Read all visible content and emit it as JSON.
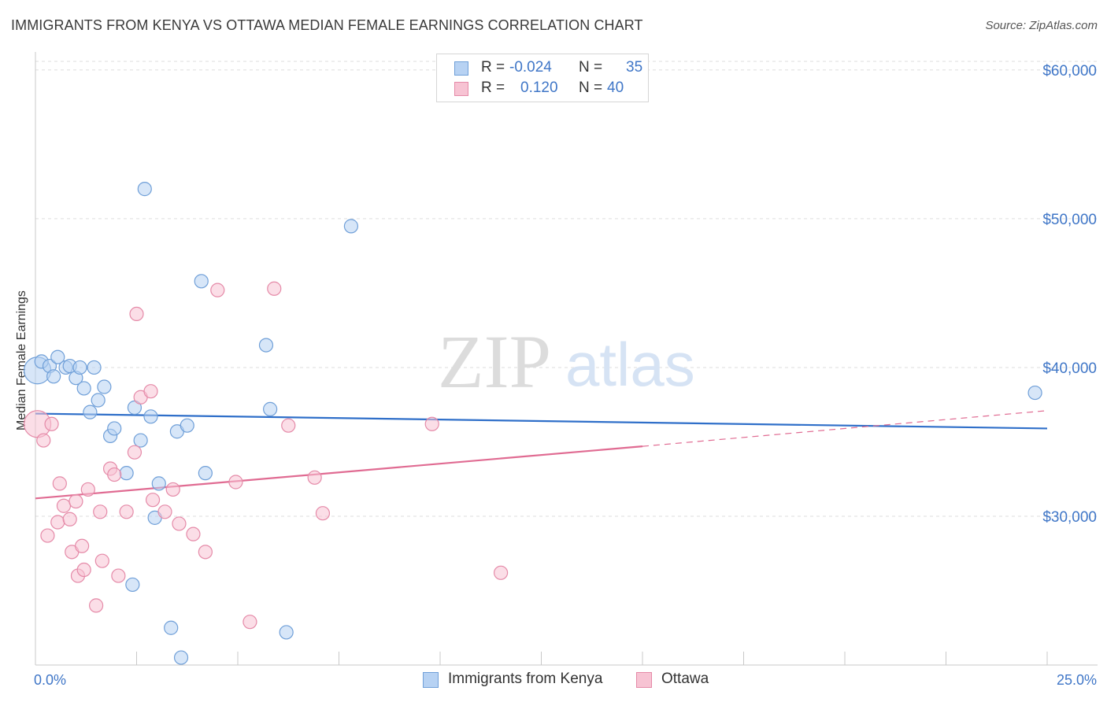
{
  "header": {
    "title": "IMMIGRANTS FROM KENYA VS OTTAWA MEDIAN FEMALE EARNINGS CORRELATION CHART",
    "source": "Source: ZipAtlas.com"
  },
  "watermark": {
    "zip": "ZIP",
    "atlas": "atlas"
  },
  "legend": {
    "rows": [
      {
        "r_label": "R =",
        "r_value": "-0.024",
        "n_label": "N =",
        "n_value": "35"
      },
      {
        "r_label": "R =",
        "r_value": "0.120",
        "n_label": "N =",
        "n_value": "40"
      }
    ]
  },
  "colors": {
    "blue_fill": "#b7d2f3",
    "blue_stroke": "#6f9fd8",
    "blue_line": "#2f6fc9",
    "pink_fill": "#f7c3d3",
    "pink_stroke": "#e58aa8",
    "pink_line": "#e06b92",
    "grid": "#dddddd",
    "axis_text": "#3f76c7"
  },
  "chart_data": {
    "type": "scatter",
    "title": "IMMIGRANTS FROM KENYA VS OTTAWA MEDIAN FEMALE EARNINGS CORRELATION CHART",
    "xlabel": "",
    "ylabel": "Median Female Earnings",
    "xlim": [
      0,
      25
    ],
    "ylim": [
      20000,
      61000
    ],
    "x_tick_labels": [
      "0.0%",
      "25.0%"
    ],
    "y_ticks": [
      30000,
      40000,
      50000,
      60000
    ],
    "y_tick_labels": [
      "$30,000",
      "$40,000",
      "$50,000",
      "$60,000"
    ],
    "grid": true,
    "series": [
      {
        "name": "Immigrants from Kenya",
        "color": "blue",
        "trend": {
          "x": [
            0,
            25
          ],
          "y": [
            36900,
            35900
          ]
        },
        "points": [
          {
            "x": 0.05,
            "y": 39800,
            "big": true
          },
          {
            "x": 0.15,
            "y": 40400
          },
          {
            "x": 0.35,
            "y": 40100
          },
          {
            "x": 0.45,
            "y": 39400
          },
          {
            "x": 0.55,
            "y": 40700
          },
          {
            "x": 0.75,
            "y": 40000
          },
          {
            "x": 0.85,
            "y": 40100
          },
          {
            "x": 1.0,
            "y": 39300
          },
          {
            "x": 1.1,
            "y": 40000
          },
          {
            "x": 1.2,
            "y": 38600
          },
          {
            "x": 1.35,
            "y": 37000
          },
          {
            "x": 1.45,
            "y": 40000
          },
          {
            "x": 1.55,
            "y": 37800
          },
          {
            "x": 1.7,
            "y": 38700
          },
          {
            "x": 1.85,
            "y": 35400
          },
          {
            "x": 1.95,
            "y": 35900
          },
          {
            "x": 2.25,
            "y": 32900
          },
          {
            "x": 2.4,
            "y": 25400
          },
          {
            "x": 2.45,
            "y": 37300
          },
          {
            "x": 2.6,
            "y": 35100
          },
          {
            "x": 2.7,
            "y": 52000
          },
          {
            "x": 2.85,
            "y": 36700
          },
          {
            "x": 2.95,
            "y": 29900
          },
          {
            "x": 3.05,
            "y": 32200
          },
          {
            "x": 3.35,
            "y": 22500
          },
          {
            "x": 3.5,
            "y": 35700
          },
          {
            "x": 3.6,
            "y": 20500
          },
          {
            "x": 3.75,
            "y": 36100
          },
          {
            "x": 4.1,
            "y": 45800
          },
          {
            "x": 4.2,
            "y": 32900
          },
          {
            "x": 5.7,
            "y": 41500
          },
          {
            "x": 5.8,
            "y": 37200
          },
          {
            "x": 6.2,
            "y": 22200
          },
          {
            "x": 7.8,
            "y": 49500
          },
          {
            "x": 24.7,
            "y": 38300
          }
        ]
      },
      {
        "name": "Ottawa",
        "color": "pink",
        "trend": {
          "x": [
            0,
            15
          ],
          "y": [
            31200,
            34700
          ]
        },
        "trend_dashed": {
          "x": [
            15,
            25
          ],
          "y": [
            34700,
            37100
          ]
        },
        "points": [
          {
            "x": 0.05,
            "y": 36200,
            "big": true
          },
          {
            "x": 0.2,
            "y": 35100
          },
          {
            "x": 0.3,
            "y": 28700
          },
          {
            "x": 0.4,
            "y": 36200
          },
          {
            "x": 0.55,
            "y": 29600
          },
          {
            "x": 0.6,
            "y": 32200
          },
          {
            "x": 0.7,
            "y": 30700
          },
          {
            "x": 0.85,
            "y": 29800
          },
          {
            "x": 0.9,
            "y": 27600
          },
          {
            "x": 1.0,
            "y": 31000
          },
          {
            "x": 1.05,
            "y": 26000
          },
          {
            "x": 1.15,
            "y": 28000
          },
          {
            "x": 1.2,
            "y": 26400
          },
          {
            "x": 1.3,
            "y": 31800
          },
          {
            "x": 1.5,
            "y": 24000
          },
          {
            "x": 1.6,
            "y": 30300
          },
          {
            "x": 1.65,
            "y": 27000
          },
          {
            "x": 1.85,
            "y": 33200
          },
          {
            "x": 1.95,
            "y": 32800
          },
          {
            "x": 2.05,
            "y": 26000
          },
          {
            "x": 2.25,
            "y": 30300
          },
          {
            "x": 2.45,
            "y": 34300
          },
          {
            "x": 2.5,
            "y": 43600
          },
          {
            "x": 2.6,
            "y": 38000
          },
          {
            "x": 2.85,
            "y": 38400
          },
          {
            "x": 2.9,
            "y": 31100
          },
          {
            "x": 3.2,
            "y": 30300
          },
          {
            "x": 3.4,
            "y": 31800
          },
          {
            "x": 3.55,
            "y": 29500
          },
          {
            "x": 3.9,
            "y": 28800
          },
          {
            "x": 4.2,
            "y": 27600
          },
          {
            "x": 4.5,
            "y": 45200
          },
          {
            "x": 4.95,
            "y": 32300
          },
          {
            "x": 5.3,
            "y": 22900
          },
          {
            "x": 5.9,
            "y": 45300
          },
          {
            "x": 6.25,
            "y": 36100
          },
          {
            "x": 6.9,
            "y": 32600
          },
          {
            "x": 7.1,
            "y": 30200
          },
          {
            "x": 9.8,
            "y": 36200
          },
          {
            "x": 11.5,
            "y": 26200
          }
        ]
      }
    ]
  }
}
